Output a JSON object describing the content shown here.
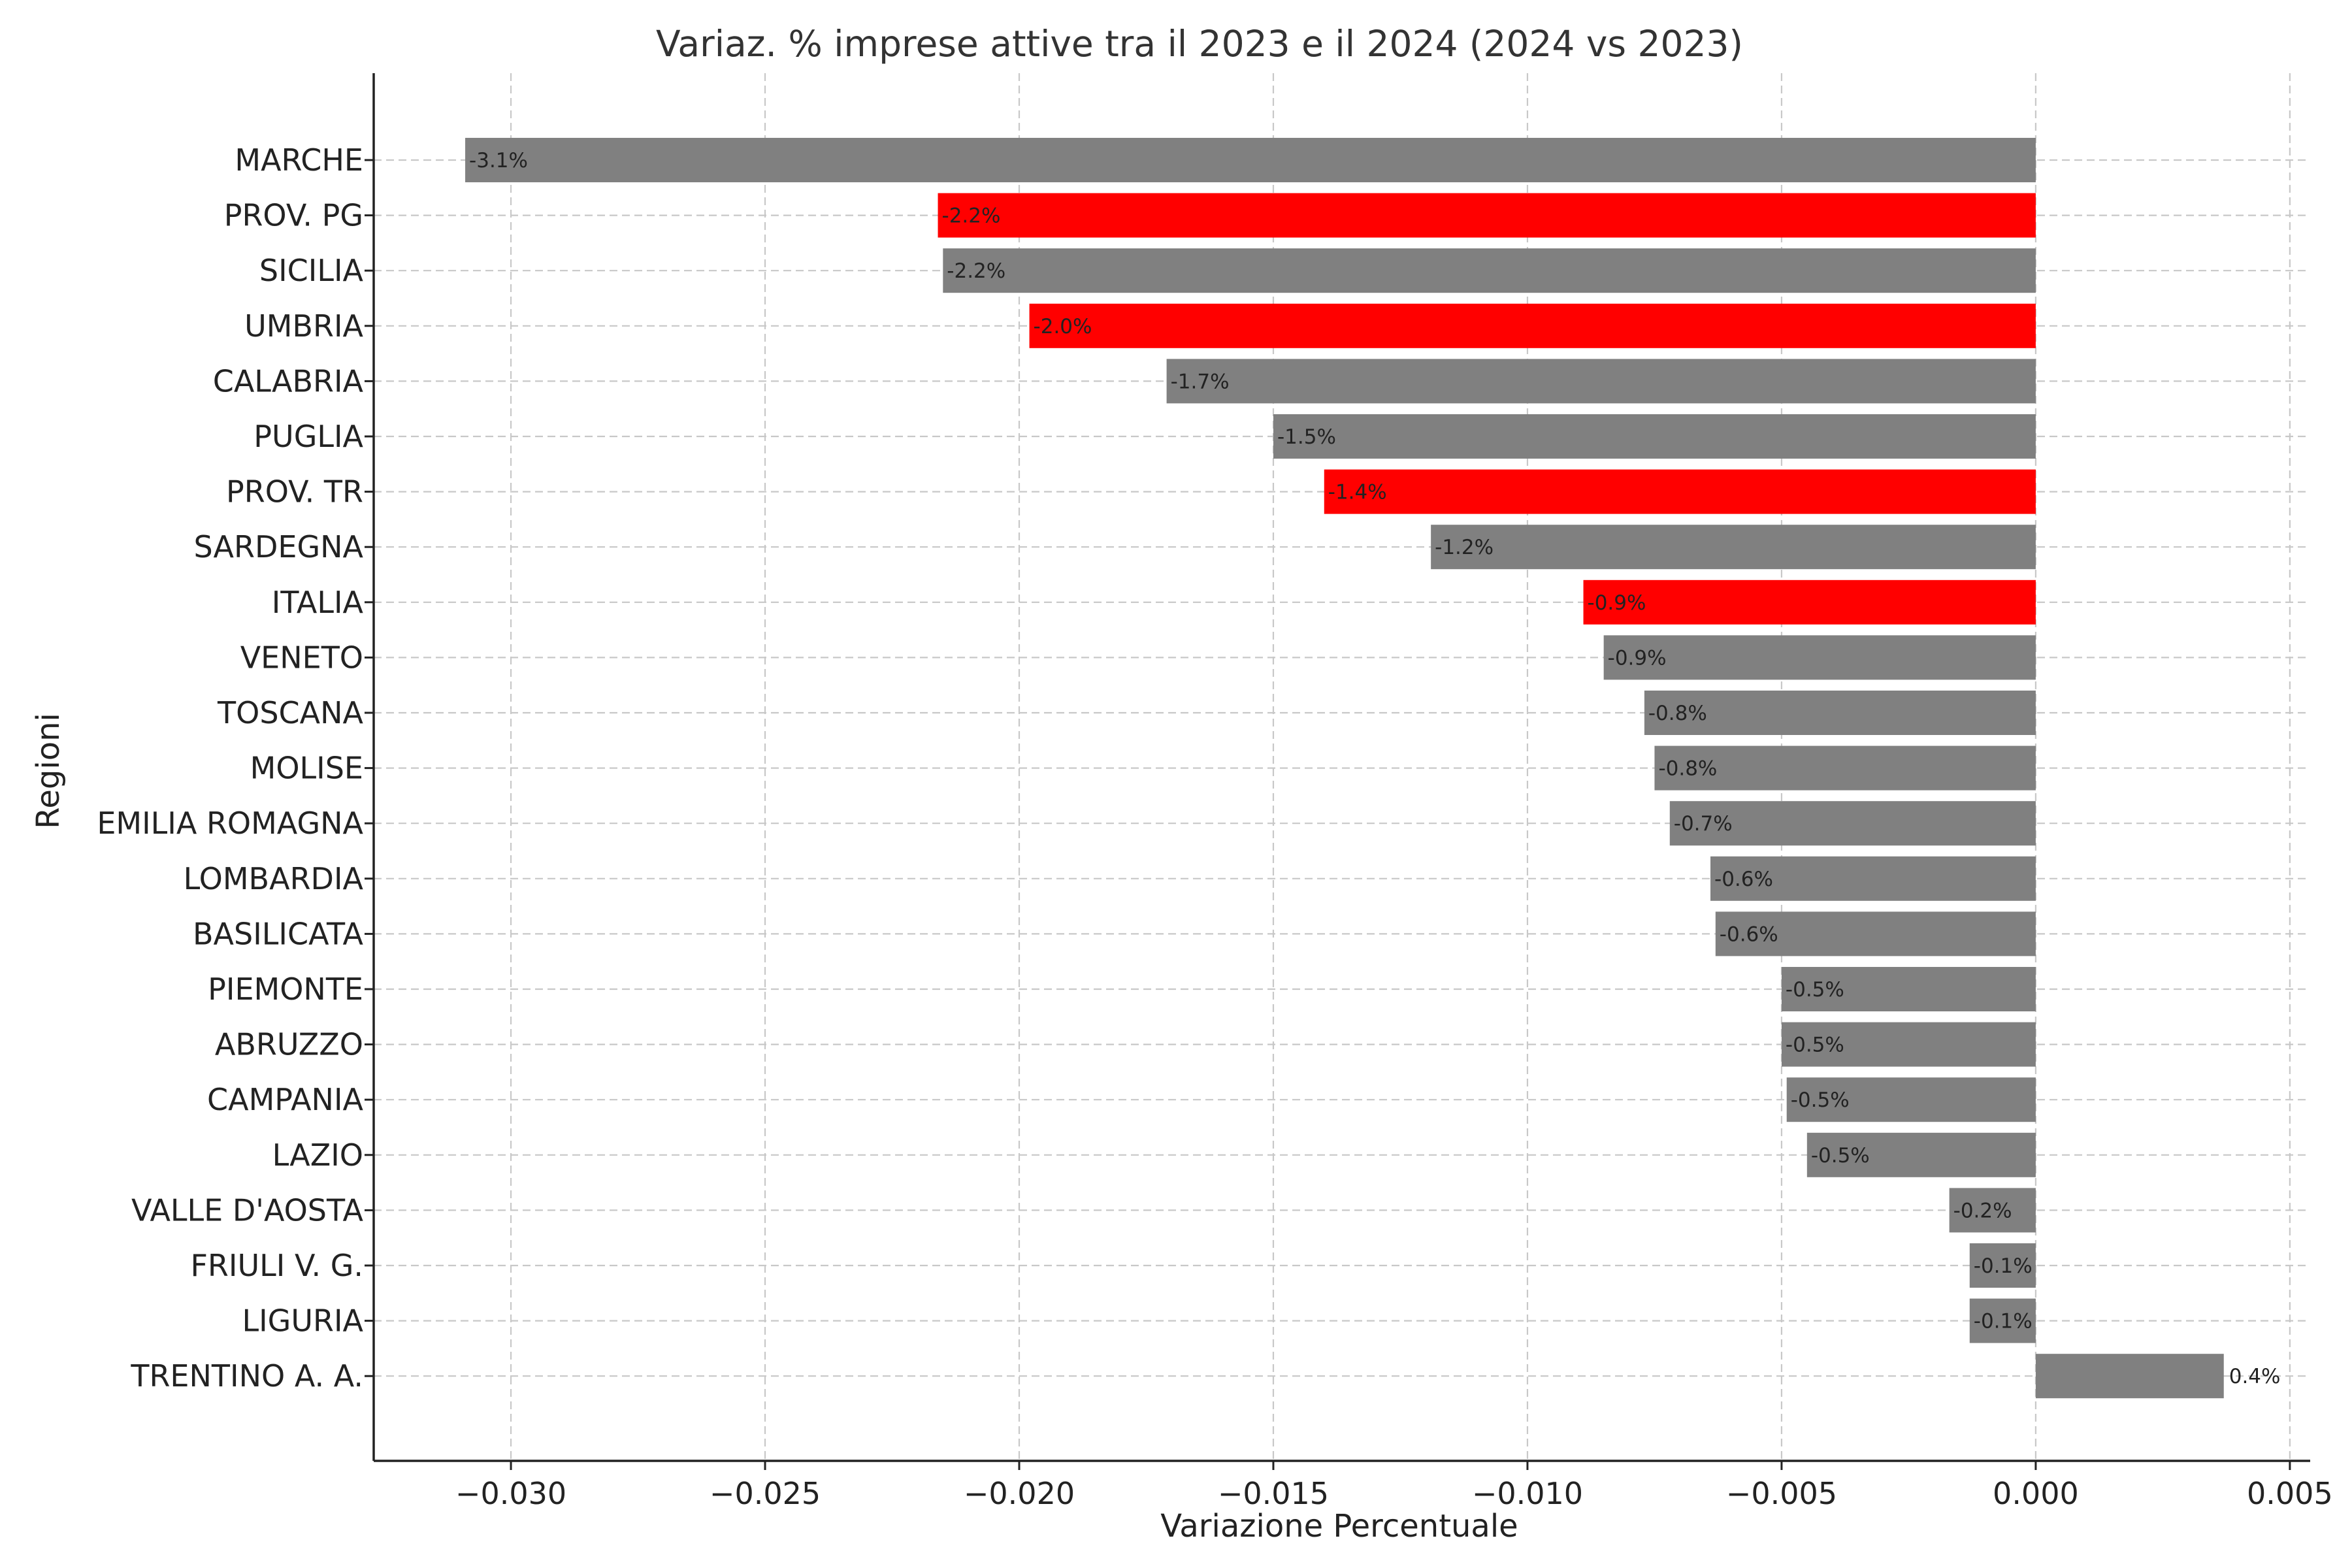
{
  "chart_data": {
    "type": "bar",
    "orientation": "horizontal",
    "title": "Variaz. % imprese attive tra il 2023 e il 2024 (2024 vs 2023)",
    "xlabel": "Variazione Percentuale",
    "ylabel": "Regioni",
    "xlim": [
      -0.0327,
      0.0054
    ],
    "xticks": [
      -0.03,
      -0.025,
      -0.02,
      -0.015,
      -0.01,
      -0.005,
      0.0,
      0.005
    ],
    "xtick_labels": [
      "−0.030",
      "−0.025",
      "−0.020",
      "−0.015",
      "−0.010",
      "−0.005",
      "0.000",
      "0.005"
    ],
    "grid": true,
    "colors": {
      "default": "#808080",
      "highlight": "#ff0000"
    },
    "categories": [
      "MARCHE",
      "PROV. PG",
      "SICILIA",
      "UMBRIA",
      "CALABRIA",
      "PUGLIA",
      "PROV. TR",
      "SARDEGNA",
      "ITALIA",
      "VENETO",
      "TOSCANA",
      "MOLISE",
      "EMILIA ROMAGNA",
      "LOMBARDIA",
      "BASILICATA",
      "PIEMONTE",
      "ABRUZZO",
      "CAMPANIA",
      "LAZIO",
      "VALLE D'AOSTA",
      "FRIULI V. G.",
      "LIGURIA",
      "TRENTINO A. A."
    ],
    "values": [
      -0.0309,
      -0.0216,
      -0.0215,
      -0.0198,
      -0.0171,
      -0.015,
      -0.014,
      -0.0119,
      -0.0089,
      -0.0085,
      -0.0077,
      -0.0075,
      -0.0072,
      -0.0064,
      -0.0063,
      -0.005,
      -0.005,
      -0.0049,
      -0.0045,
      -0.0017,
      -0.0013,
      -0.0013,
      0.0037
    ],
    "data_labels": [
      "-3.1%",
      "-2.2%",
      "-2.2%",
      "-2.0%",
      "-1.7%",
      "-1.5%",
      "-1.4%",
      "-1.2%",
      "-0.9%",
      "-0.9%",
      "-0.8%",
      "-0.8%",
      "-0.7%",
      "-0.6%",
      "-0.6%",
      "-0.5%",
      "-0.5%",
      "-0.5%",
      "-0.5%",
      "-0.2%",
      "-0.1%",
      "-0.1%",
      "0.4%"
    ],
    "highlighted": [
      "PROV. PG",
      "UMBRIA",
      "PROV. TR",
      "ITALIA"
    ]
  }
}
